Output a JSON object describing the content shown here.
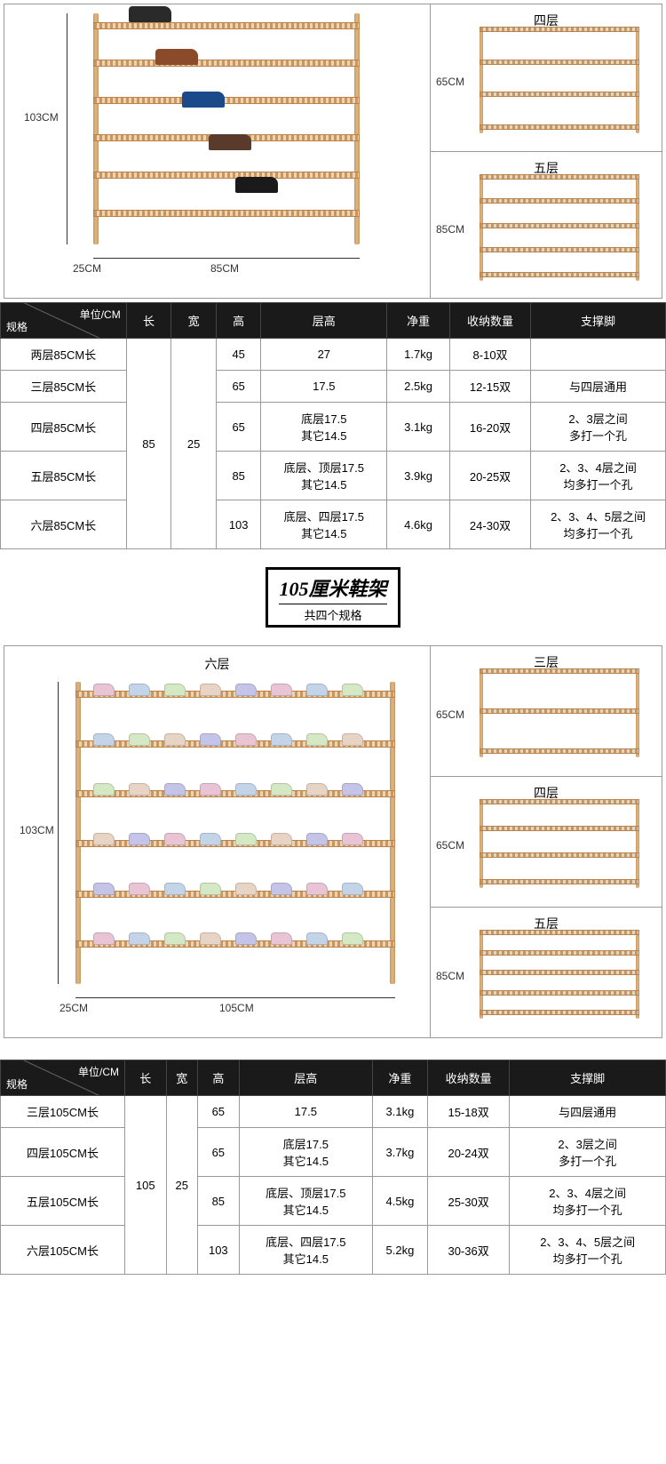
{
  "colors": {
    "bamboo": "#c8965f",
    "bamboo_light": "#e0b887",
    "table_header_bg": "#1a1a1a",
    "table_header_text": "#ffffff",
    "border": "#999999",
    "text": "#333333"
  },
  "section85": {
    "main": {
      "height_label": "103CM",
      "width_label": "85CM",
      "depth_label": "25CM",
      "shelves": 6
    },
    "side": [
      {
        "label": "四层",
        "height": "65CM",
        "shelves": 4
      },
      {
        "label": "五层",
        "height": "85CM",
        "shelves": 5
      }
    ]
  },
  "table85": {
    "header_corner": {
      "top": "单位/CM",
      "bottom": "规格"
    },
    "columns": [
      "长",
      "宽",
      "高",
      "层高",
      "净重",
      "收纳数量",
      "支撑脚"
    ],
    "col_widths": [
      "140px",
      "50px",
      "50px",
      "50px",
      "140px",
      "70px",
      "90px",
      "150px"
    ],
    "merged_length": "85",
    "merged_width": "25",
    "rows": [
      {
        "spec": "两层85CM长",
        "height": "45",
        "layer_h": "27",
        "weight": "1.7kg",
        "capacity": "8-10双",
        "legs": ""
      },
      {
        "spec": "三层85CM长",
        "height": "65",
        "layer_h": "17.5",
        "weight": "2.5kg",
        "capacity": "12-15双",
        "legs": "与四层通用"
      },
      {
        "spec": "四层85CM长",
        "height": "65",
        "layer_h": "底层17.5\n其它14.5",
        "weight": "3.1kg",
        "capacity": "16-20双",
        "legs": "2、3层之间\n多打一个孔"
      },
      {
        "spec": "五层85CM长",
        "height": "85",
        "layer_h": "底层、顶层17.5\n其它14.5",
        "weight": "3.9kg",
        "capacity": "20-25双",
        "legs": "2、3、4层之间\n均多打一个孔"
      },
      {
        "spec": "六层85CM长",
        "height": "103",
        "layer_h": "底层、四层17.5\n其它14.5",
        "weight": "4.6kg",
        "capacity": "24-30双",
        "legs": "2、3、4、5层之间\n均多打一个孔"
      }
    ]
  },
  "title_badge": {
    "main": "105厘米鞋架",
    "sub": "共四个规格"
  },
  "section105": {
    "main": {
      "label": "六层",
      "height_label": "103CM",
      "width_label": "105CM",
      "depth_label": "25CM",
      "shelves": 6
    },
    "side": [
      {
        "label": "三层",
        "height": "65CM",
        "shelves": 3
      },
      {
        "label": "四层",
        "height": "65CM",
        "shelves": 4
      },
      {
        "label": "五层",
        "height": "85CM",
        "shelves": 5
      }
    ]
  },
  "table105": {
    "header_corner": {
      "top": "单位/CM",
      "bottom": "规格"
    },
    "columns": [
      "长",
      "宽",
      "高",
      "层高",
      "净重",
      "收纳数量",
      "支撑脚"
    ],
    "merged_length": "105",
    "merged_width": "25",
    "rows": [
      {
        "spec": "三层105CM长",
        "height": "65",
        "layer_h": "17.5",
        "weight": "3.1kg",
        "capacity": "15-18双",
        "legs": "与四层通用"
      },
      {
        "spec": "四层105CM长",
        "height": "65",
        "layer_h": "底层17.5\n其它14.5",
        "weight": "3.7kg",
        "capacity": "20-24双",
        "legs": "2、3层之间\n多打一个孔"
      },
      {
        "spec": "五层105CM长",
        "height": "85",
        "layer_h": "底层、顶层17.5\n其它14.5",
        "weight": "4.5kg",
        "capacity": "25-30双",
        "legs": "2、3、4层之间\n均多打一个孔"
      },
      {
        "spec": "六层105CM长",
        "height": "103",
        "layer_h": "底层、四层17.5\n其它14.5",
        "weight": "5.2kg",
        "capacity": "30-36双",
        "legs": "2、3、4、5层之间\n均多打一个孔"
      }
    ]
  }
}
